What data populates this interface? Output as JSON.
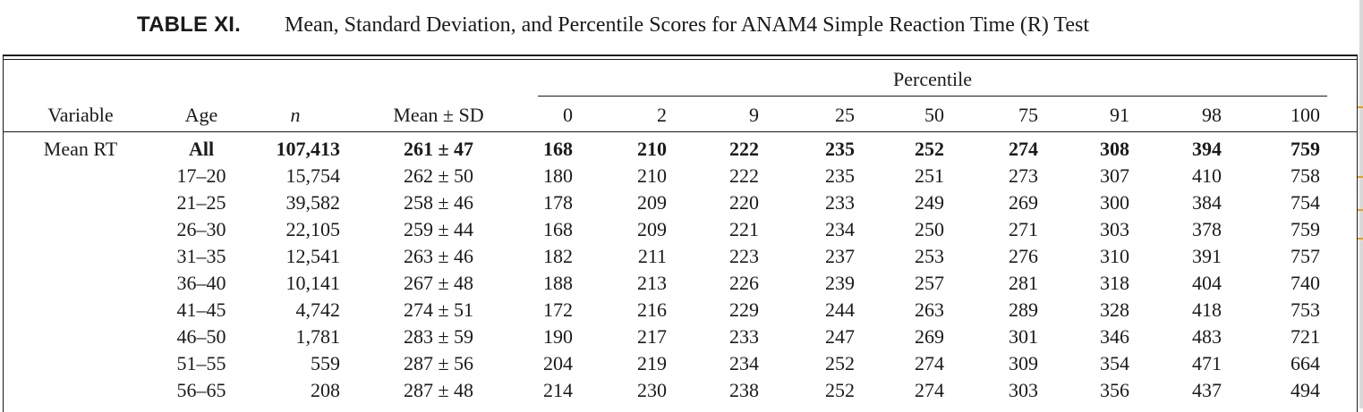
{
  "caption": {
    "label": "TABLE XI.",
    "title": "Mean, Standard Deviation, and Percentile Scores for ANAM4 Simple Reaction Time (R) Test"
  },
  "table": {
    "group_header": "Percentile",
    "columns": [
      "Variable",
      "Age",
      "n",
      "Mean ± SD",
      "0",
      "2",
      "9",
      "25",
      "50",
      "75",
      "91",
      "98",
      "100"
    ],
    "rows": [
      {
        "variable": "Mean RT",
        "age": "All",
        "n": "107,413",
        "mean_sd": "261 ± 47",
        "p": [
          "168",
          "210",
          "222",
          "235",
          "252",
          "274",
          "308",
          "394",
          "759"
        ],
        "bold": true
      },
      {
        "variable": "",
        "age": "17–20",
        "n": "15,754",
        "mean_sd": "262 ± 50",
        "p": [
          "180",
          "210",
          "222",
          "235",
          "251",
          "273",
          "307",
          "410",
          "758"
        ],
        "bold": false
      },
      {
        "variable": "",
        "age": "21–25",
        "n": "39,582",
        "mean_sd": "258 ± 46",
        "p": [
          "178",
          "209",
          "220",
          "233",
          "249",
          "269",
          "300",
          "384",
          "754"
        ],
        "bold": false
      },
      {
        "variable": "",
        "age": "26–30",
        "n": "22,105",
        "mean_sd": "259 ± 44",
        "p": [
          "168",
          "209",
          "221",
          "234",
          "250",
          "271",
          "303",
          "378",
          "759"
        ],
        "bold": false
      },
      {
        "variable": "",
        "age": "31–35",
        "n": "12,541",
        "mean_sd": "263 ± 46",
        "p": [
          "182",
          "211",
          "223",
          "237",
          "253",
          "276",
          "310",
          "391",
          "757"
        ],
        "bold": false
      },
      {
        "variable": "",
        "age": "36–40",
        "n": "10,141",
        "mean_sd": "267 ± 48",
        "p": [
          "188",
          "213",
          "226",
          "239",
          "257",
          "281",
          "318",
          "404",
          "740"
        ],
        "bold": false
      },
      {
        "variable": "",
        "age": "41–45",
        "n": "4,742",
        "mean_sd": "274 ± 51",
        "p": [
          "172",
          "216",
          "229",
          "244",
          "263",
          "289",
          "328",
          "418",
          "753"
        ],
        "bold": false
      },
      {
        "variable": "",
        "age": "46–50",
        "n": "1,781",
        "mean_sd": "283 ± 59",
        "p": [
          "190",
          "217",
          "233",
          "247",
          "269",
          "301",
          "346",
          "483",
          "721"
        ],
        "bold": false
      },
      {
        "variable": "",
        "age": "51–55",
        "n": "559",
        "mean_sd": "287 ± 56",
        "p": [
          "204",
          "219",
          "234",
          "252",
          "274",
          "309",
          "354",
          "471",
          "664"
        ],
        "bold": false
      },
      {
        "variable": "",
        "age": "56–65",
        "n": "208",
        "mean_sd": "287 ± 48",
        "p": [
          "214",
          "230",
          "238",
          "252",
          "274",
          "303",
          "356",
          "437",
          "494"
        ],
        "bold": false
      }
    ]
  }
}
